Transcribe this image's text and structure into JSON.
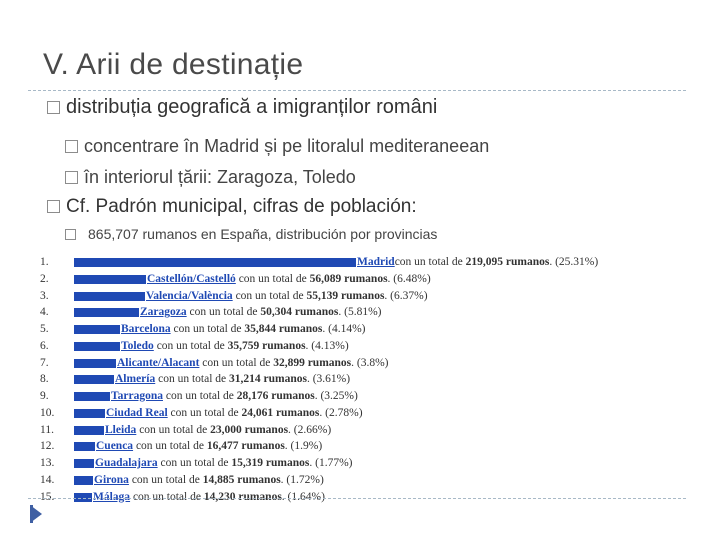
{
  "slide": {
    "title": "V. Arii de destinație",
    "bullet1": "distribuția geografică a imigranților români",
    "sub1": "concentrare în Madrid și pe litoralul mediteraneean",
    "sub2": "în interiorul țării: Zaragoza, Toledo",
    "bullet2": "Cf. Padrón municipal, cifras de población:",
    "sub3": "865,707 rumanos en España, distribución por provincias"
  },
  "colors": {
    "bar": "#1f49b4",
    "title": "#4a4a4a",
    "rule": "#a8b9c7"
  },
  "chart_data": {
    "type": "bar",
    "orientation": "horizontal",
    "categories": [
      "Madrid",
      "Castellón/Castelló",
      "Valencia/València",
      "Zaragoza",
      "Barcelona",
      "Toledo",
      "Alicante/Alacant",
      "Almería",
      "Tarragona",
      "Ciudad Real",
      "Lleida",
      "Cuenca",
      "Guadalajara",
      "Girona",
      "Málaga"
    ],
    "values": [
      219095,
      56089,
      55139,
      50304,
      35844,
      35759,
      32899,
      31214,
      28176,
      24061,
      23000,
      16477,
      15319,
      14885,
      14230
    ],
    "rows": [
      {
        "num": "1.",
        "city": "Madrid",
        "pre": "con un total de ",
        "val": "219,095 rumanos",
        "pct": ". (25.31%)"
      },
      {
        "num": "2.",
        "city": "Castellón/Castelló",
        "pre": " con un total de ",
        "val": "56,089 rumanos",
        "pct": ". (6.48%)"
      },
      {
        "num": "3.",
        "city": "Valencia/València",
        "pre": " con un total de ",
        "val": "55,139 rumanos",
        "pct": ". (6.37%)"
      },
      {
        "num": "4.",
        "city": "Zaragoza",
        "pre": " con un total de ",
        "val": "50,304 rumanos",
        "pct": ". (5.81%)"
      },
      {
        "num": "5.",
        "city": "Barcelona",
        "pre": " con un total de ",
        "val": "35,844 rumanos",
        "pct": ". (4.14%)"
      },
      {
        "num": "6.",
        "city": "Toledo",
        "pre": " con un total de ",
        "val": "35,759 rumanos",
        "pct": ". (4.13%)"
      },
      {
        "num": "7.",
        "city": "Alicante/Alacant",
        "pre": " con un total de ",
        "val": "32,899 rumanos",
        "pct": ". (3.8%)"
      },
      {
        "num": "8.",
        "city": "Almería",
        "pre": " con un total de ",
        "val": "31,214 rumanos",
        "pct": ". (3.61%)"
      },
      {
        "num": "9.",
        "city": "Tarragona",
        "pre": " con un total de ",
        "val": "28,176 rumanos",
        "pct": ". (3.25%)"
      },
      {
        "num": "10.",
        "city": "Ciudad Real",
        "pre": " con un total de ",
        "val": "24,061 rumanos",
        "pct": ". (2.78%)"
      },
      {
        "num": "11.",
        "city": "Lleida",
        "pre": " con un total de ",
        "val": "23,000 rumanos",
        "pct": ". (2.66%)"
      },
      {
        "num": "12.",
        "city": "Cuenca",
        "pre": " con un total de ",
        "val": "16,477 rumanos",
        "pct": ". (1.9%)"
      },
      {
        "num": "13.",
        "city": "Guadalajara",
        "pre": " con un total de ",
        "val": "15,319 rumanos",
        "pct": ". (1.77%)"
      },
      {
        "num": "14.",
        "city": "Girona",
        "pre": " con un total de ",
        "val": "14,885 rumanos",
        "pct": ". (1.72%)"
      },
      {
        "num": "15.",
        "city": "Málaga",
        "pre": " con un total de ",
        "val": "14,230 rumanos",
        "pct": ". (1.64%)"
      }
    ]
  }
}
